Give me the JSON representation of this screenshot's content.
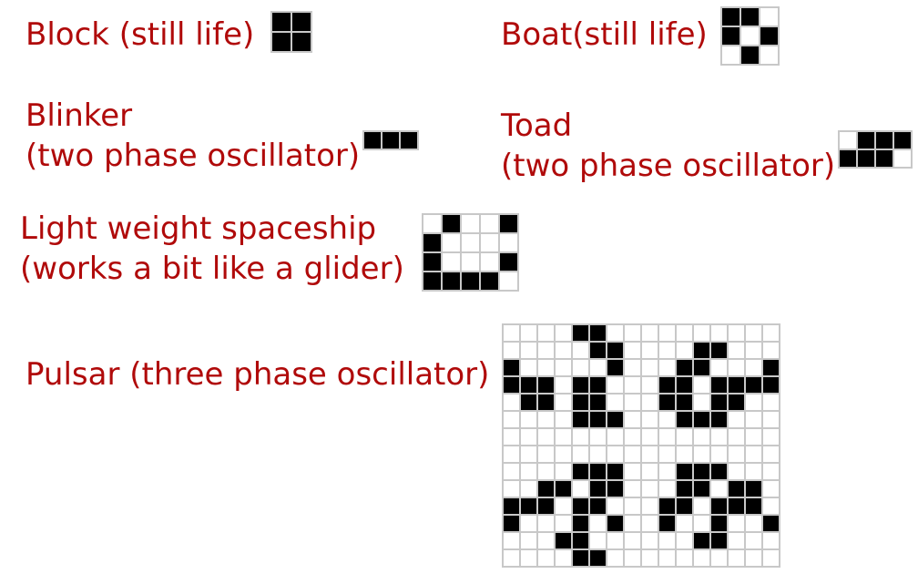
{
  "colors": {
    "label": "#b00a0a",
    "live_cell": "#000000",
    "dead_cell": "#ffffff",
    "grid_line": "#c8c8c8"
  },
  "patterns": [
    {
      "id": "block",
      "label_lines": [
        "Block (still life)"
      ],
      "cells": [
        "11",
        "11"
      ]
    },
    {
      "id": "boat",
      "label_lines": [
        "Boat(still life)"
      ],
      "cells": [
        "110",
        "101",
        "010"
      ]
    },
    {
      "id": "blinker",
      "label_lines": [
        "Blinker",
        "(two phase oscillator)"
      ],
      "cells": [
        "111"
      ]
    },
    {
      "id": "toad",
      "label_lines": [
        "Toad",
        "(two phase oscillator)"
      ],
      "cells": [
        "0111",
        "1110"
      ]
    },
    {
      "id": "lwss",
      "label_lines": [
        "Light weight spaceship",
        "(works a bit like a glider)"
      ],
      "cells": [
        "01001",
        "10000",
        "10001",
        "11110"
      ]
    },
    {
      "id": "pulsar",
      "label_lines": [
        "Pulsar (three phase oscillator)"
      ],
      "cells": [
        "0000110000000000",
        "0000011000011000",
        "1000001000110001",
        "1110110001101111",
        "0110110001101100",
        "0000111000111000",
        "0000000000000000",
        "0000000000000000",
        "0000111000111000",
        "0011011000110110",
        "1110110001101110",
        "1000101001001001",
        "0001100000011000",
        "0000110000000000"
      ]
    }
  ]
}
